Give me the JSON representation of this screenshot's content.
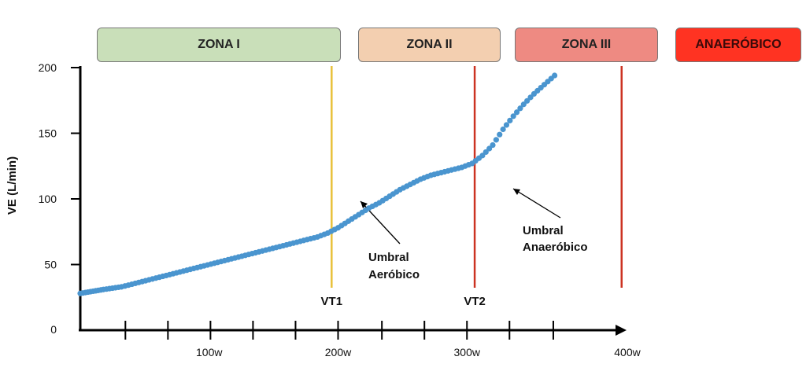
{
  "zones": [
    {
      "label": "ZONA I",
      "color": "#c9dfb9"
    },
    {
      "label": "ZONA II",
      "color": "#f3cfb0"
    },
    {
      "label": "ZONA III",
      "color": "#ee8a82"
    },
    {
      "label": "ANAERÓBICO",
      "color": "#ff3322"
    }
  ],
  "chart_data": {
    "type": "scatter",
    "title": "",
    "ylabel": "VE (L/min)",
    "xlabel": "",
    "ylim": [
      0,
      200
    ],
    "xlim": [
      0,
      400
    ],
    "y_ticks": [
      {
        "value": 0,
        "label": "0"
      },
      {
        "value": 50,
        "label": "50"
      },
      {
        "value": 100,
        "label": "100"
      },
      {
        "value": 150,
        "label": "150"
      },
      {
        "value": 200,
        "label": "200"
      }
    ],
    "x_tick_labels": [
      {
        "value": 100,
        "label": "100w"
      },
      {
        "value": 200,
        "label": "200w"
      },
      {
        "value": 300,
        "label": "300w"
      },
      {
        "value": 400,
        "label": "400w"
      }
    ],
    "x_tick_marks": [
      35,
      68,
      101,
      134,
      167,
      200,
      234,
      267,
      300,
      333,
      367
    ],
    "thresholds": [
      {
        "label": "VT1",
        "x": 195,
        "color": "#e8c13a"
      },
      {
        "label": "VT2",
        "x": 306,
        "color": "#cc3322"
      },
      {
        "label": "",
        "x": 420,
        "color": "#cc3322"
      }
    ],
    "annotations": [
      {
        "line1": "Umbral",
        "line2": "Aeróbico"
      },
      {
        "line1": "Umbral",
        "line2": "Anaeróbico"
      }
    ],
    "series": [
      {
        "name": "VE",
        "color": "#4a95cf",
        "x": [
          0,
          6,
          12,
          18,
          25,
          32,
          40,
          48,
          56,
          64,
          72,
          80,
          88,
          96,
          104,
          112,
          120,
          128,
          136,
          144,
          152,
          160,
          168,
          176,
          184,
          192,
          200,
          208,
          216,
          224,
          232,
          240,
          248,
          256,
          264,
          272,
          280,
          288,
          296,
          304,
          312,
          320,
          328,
          336,
          344,
          352,
          360,
          368
        ],
        "y": [
          28,
          29,
          30,
          31,
          32,
          33,
          35,
          37,
          39,
          41,
          43,
          45,
          47,
          49,
          51,
          53,
          55,
          57,
          59,
          61,
          63,
          65,
          67,
          69,
          71,
          74,
          78,
          83,
          88,
          93,
          97,
          102,
          107,
          111,
          115,
          118,
          120,
          122,
          124,
          127,
          133,
          141,
          153,
          163,
          172,
          180,
          187,
          194
        ]
      }
    ]
  }
}
